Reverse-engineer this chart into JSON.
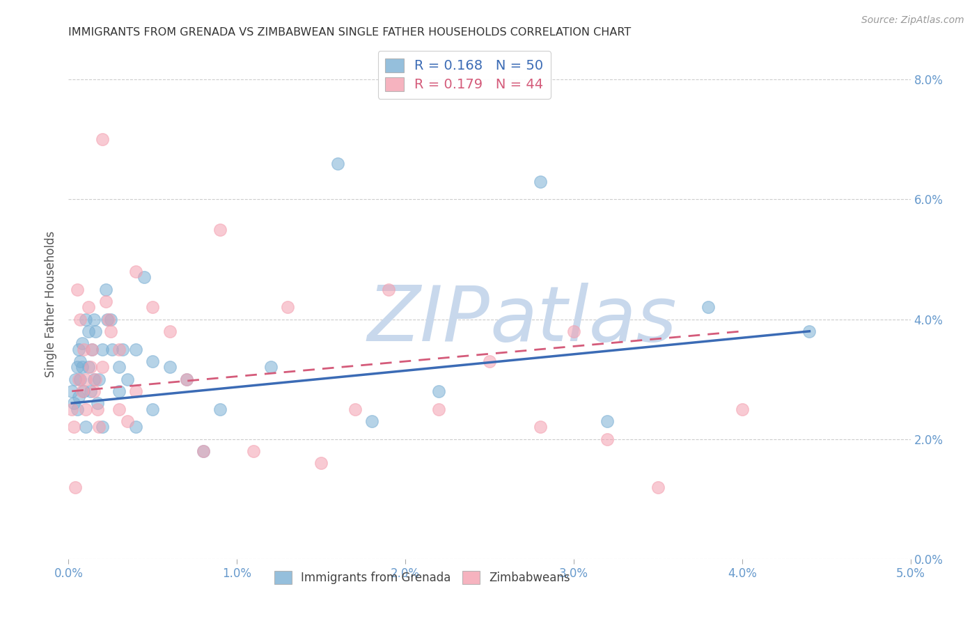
{
  "title": "IMMIGRANTS FROM GRENADA VS ZIMBABWEAN SINGLE FATHER HOUSEHOLDS CORRELATION CHART",
  "source": "Source: ZipAtlas.com",
  "ylabel": "Single Father Households",
  "legend_labels": [
    "Immigrants from Grenada",
    "Zimbabweans"
  ],
  "r1": 0.168,
  "n1": 50,
  "r2": 0.179,
  "n2": 44,
  "blue_color": "#7BAFD4",
  "pink_color": "#F4A0B0",
  "blue_line_color": "#3B6BB5",
  "pink_line_color": "#D45B7A",
  "title_color": "#333333",
  "axis_color": "#6699CC",
  "watermark_color": "#C8D8EC",
  "xlim": [
    0.0,
    0.05
  ],
  "ylim": [
    0.0,
    0.085
  ],
  "yticks": [
    0.0,
    0.02,
    0.04,
    0.06,
    0.08
  ],
  "xticks": [
    0.0,
    0.01,
    0.02,
    0.03,
    0.04,
    0.05
  ],
  "blue_x": [
    0.0002,
    0.0003,
    0.0004,
    0.0005,
    0.0005,
    0.0006,
    0.0006,
    0.0007,
    0.0007,
    0.0008,
    0.0008,
    0.0009,
    0.001,
    0.001,
    0.0012,
    0.0012,
    0.0013,
    0.0014,
    0.0015,
    0.0015,
    0.0016,
    0.0017,
    0.0018,
    0.002,
    0.002,
    0.0022,
    0.0023,
    0.0025,
    0.0026,
    0.003,
    0.003,
    0.0032,
    0.0035,
    0.004,
    0.004,
    0.0045,
    0.005,
    0.005,
    0.006,
    0.007,
    0.008,
    0.009,
    0.012,
    0.016,
    0.018,
    0.022,
    0.028,
    0.032,
    0.038,
    0.044
  ],
  "blue_y": [
    0.028,
    0.026,
    0.03,
    0.025,
    0.032,
    0.035,
    0.027,
    0.033,
    0.03,
    0.036,
    0.032,
    0.028,
    0.04,
    0.022,
    0.038,
    0.032,
    0.028,
    0.035,
    0.04,
    0.03,
    0.038,
    0.026,
    0.03,
    0.035,
    0.022,
    0.045,
    0.04,
    0.04,
    0.035,
    0.032,
    0.028,
    0.035,
    0.03,
    0.035,
    0.022,
    0.047,
    0.033,
    0.025,
    0.032,
    0.03,
    0.018,
    0.025,
    0.032,
    0.066,
    0.023,
    0.028,
    0.063,
    0.023,
    0.042,
    0.038
  ],
  "pink_x": [
    0.0002,
    0.0003,
    0.0004,
    0.0005,
    0.0006,
    0.0007,
    0.0008,
    0.0009,
    0.001,
    0.001,
    0.0012,
    0.0013,
    0.0014,
    0.0015,
    0.0016,
    0.0017,
    0.0018,
    0.002,
    0.002,
    0.0022,
    0.0024,
    0.0025,
    0.003,
    0.003,
    0.0035,
    0.004,
    0.004,
    0.005,
    0.006,
    0.007,
    0.008,
    0.009,
    0.011,
    0.013,
    0.015,
    0.017,
    0.019,
    0.022,
    0.025,
    0.028,
    0.03,
    0.032,
    0.035,
    0.04
  ],
  "pink_y": [
    0.025,
    0.022,
    0.012,
    0.045,
    0.03,
    0.04,
    0.028,
    0.035,
    0.03,
    0.025,
    0.042,
    0.032,
    0.035,
    0.028,
    0.03,
    0.025,
    0.022,
    0.07,
    0.032,
    0.043,
    0.04,
    0.038,
    0.035,
    0.025,
    0.023,
    0.048,
    0.028,
    0.042,
    0.038,
    0.03,
    0.018,
    0.055,
    0.018,
    0.042,
    0.016,
    0.025,
    0.045,
    0.025,
    0.033,
    0.022,
    0.038,
    0.02,
    0.012,
    0.025
  ],
  "blue_trend_x": [
    0.0002,
    0.044
  ],
  "blue_trend_y": [
    0.026,
    0.038
  ],
  "pink_trend_x": [
    0.0002,
    0.04
  ],
  "pink_trend_y": [
    0.028,
    0.038
  ]
}
